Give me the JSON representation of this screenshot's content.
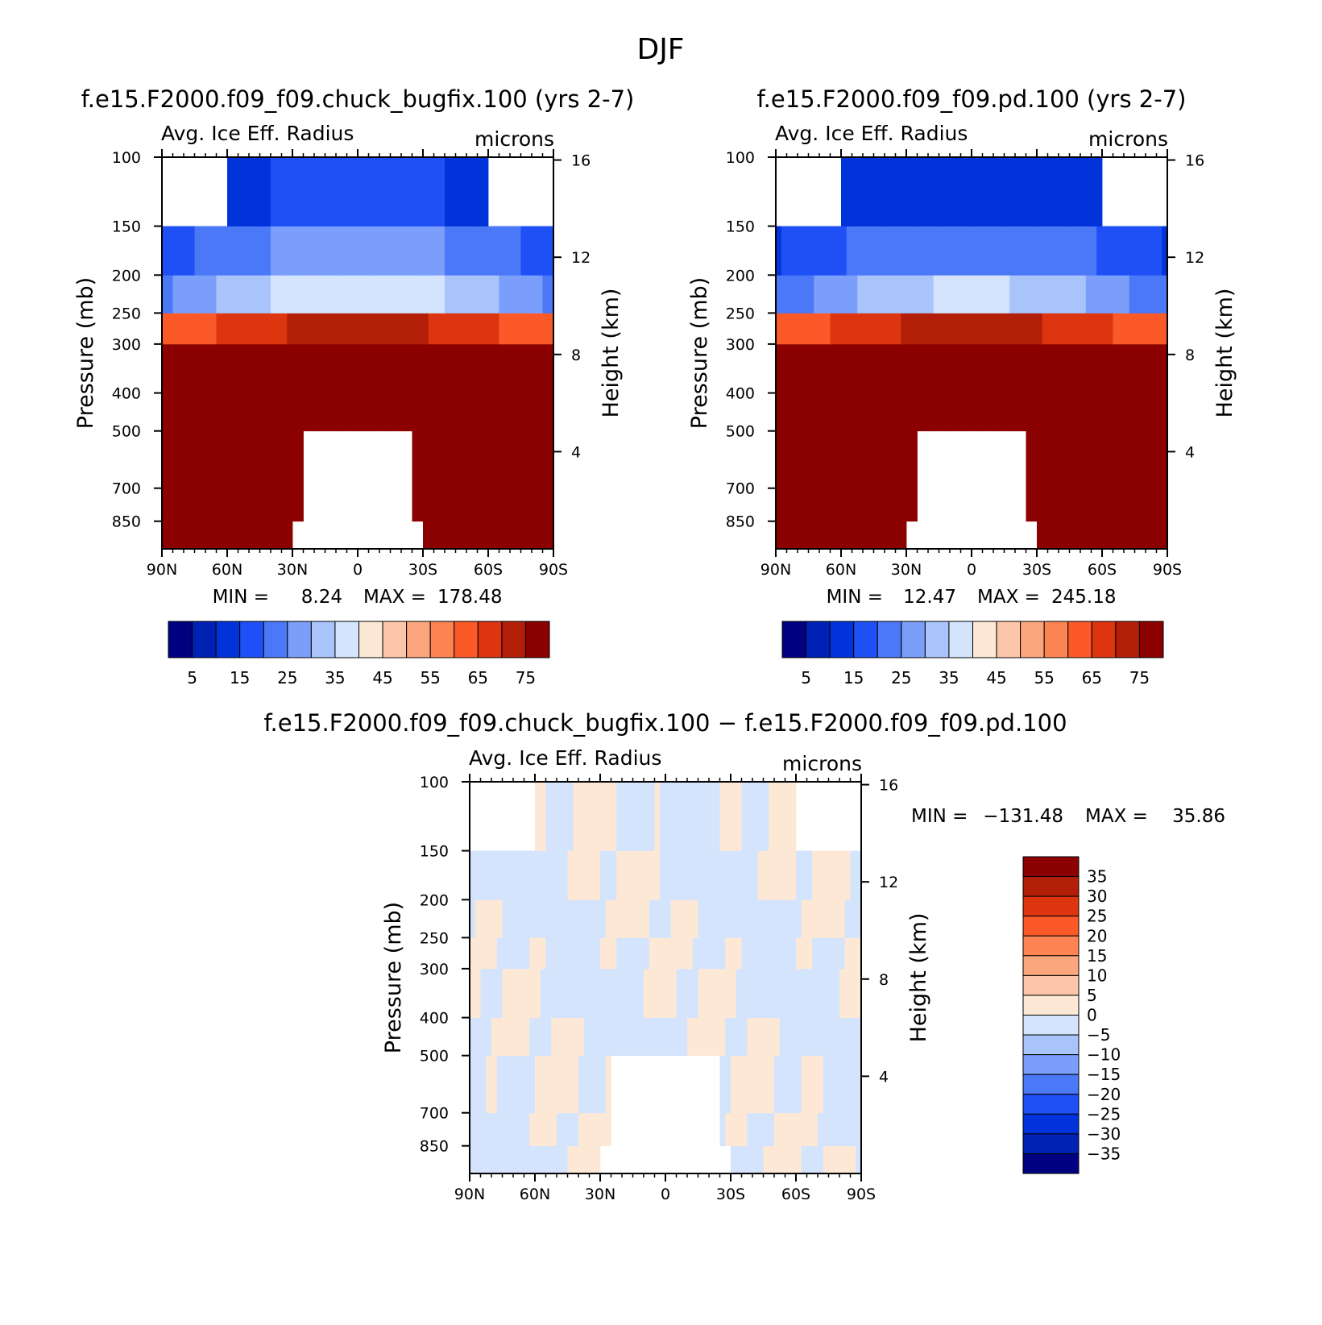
{
  "figure": {
    "title": "DJF"
  },
  "colors": {
    "abs_fill": [
      "#000080",
      "#0022b4",
      "#0033d9",
      "#1e50f5",
      "#4a78f7",
      "#7a9ef9",
      "#a8c4fb",
      "#d3e4fc",
      "#fde8d6",
      "#fcc6aa",
      "#fca67e",
      "#fc8453",
      "#fb5a28",
      "#dc3510",
      "#b31e08",
      "#8b0000"
    ],
    "diff_fill": [
      "#000080",
      "#0022b4",
      "#0033d9",
      "#1e50f5",
      "#4a78f7",
      "#7a9ef9",
      "#a8c4fb",
      "#d3e4fc",
      "#fde8d6",
      "#fcc6aa",
      "#fca67e",
      "#fc8453",
      "#fb5a28",
      "#dc3510",
      "#b31e08",
      "#8b0000"
    ]
  },
  "chart_data": [
    {
      "type": "heatmap",
      "title": "f.e15.F2000.f09_f09.chuck_bugfix.100 (yrs 2-7)",
      "variable": "Avg. Ice Eff. Radius",
      "units": "microns",
      "ylabel": "Pressure (mb)",
      "ylabel_right": "Height (km)",
      "x_ticks": [
        "90N",
        "60N",
        "30N",
        "0",
        "30S",
        "60S",
        "90S"
      ],
      "y_ticks": [
        "100",
        "150",
        "200",
        "250",
        "300",
        "400",
        "500",
        "700",
        "850"
      ],
      "y_ticks_right": [
        "16",
        "12",
        "8",
        "4"
      ],
      "min_label": "MIN =",
      "min_value": "8.24",
      "max_label": "MAX =",
      "max_value": "178.48",
      "colorbar_labels": [
        "5",
        "15",
        "25",
        "35",
        "45",
        "55",
        "65",
        "75"
      ]
    },
    {
      "type": "heatmap",
      "title": "f.e15.F2000.f09_f09.pd.100 (yrs 2-7)",
      "variable": "Avg. Ice Eff. Radius",
      "units": "microns",
      "ylabel": "Pressure (mb)",
      "ylabel_right": "Height (km)",
      "x_ticks": [
        "90N",
        "60N",
        "30N",
        "0",
        "30S",
        "60S",
        "90S"
      ],
      "y_ticks": [
        "100",
        "150",
        "200",
        "250",
        "300",
        "400",
        "500",
        "700",
        "850"
      ],
      "y_ticks_right": [
        "16",
        "12",
        "8",
        "4"
      ],
      "min_label": "MIN =",
      "min_value": "12.47",
      "max_label": "MAX =",
      "max_value": "245.18",
      "colorbar_labels": [
        "5",
        "15",
        "25",
        "35",
        "45",
        "55",
        "65",
        "75"
      ]
    },
    {
      "type": "heatmap",
      "title": "f.e15.F2000.f09_f09.chuck_bugfix.100 − f.e15.F2000.f09_f09.pd.100",
      "variable": "Avg. Ice Eff. Radius",
      "units": "microns",
      "ylabel": "Pressure (mb)",
      "ylabel_right": "Height (km)",
      "x_ticks": [
        "90N",
        "60N",
        "30N",
        "0",
        "30S",
        "60S",
        "90S"
      ],
      "y_ticks": [
        "100",
        "150",
        "200",
        "250",
        "300",
        "400",
        "500",
        "700",
        "850"
      ],
      "y_ticks_right": [
        "16",
        "12",
        "8",
        "4"
      ],
      "min_label": "MIN =",
      "min_value": "−131.48",
      "max_label": "MAX =",
      "max_value": "35.86",
      "colorbar_labels": [
        "35",
        "30",
        "25",
        "20",
        "15",
        "10",
        "5",
        "0",
        "−5",
        "−10",
        "−15",
        "−20",
        "−25",
        "−30",
        "−35"
      ]
    }
  ]
}
